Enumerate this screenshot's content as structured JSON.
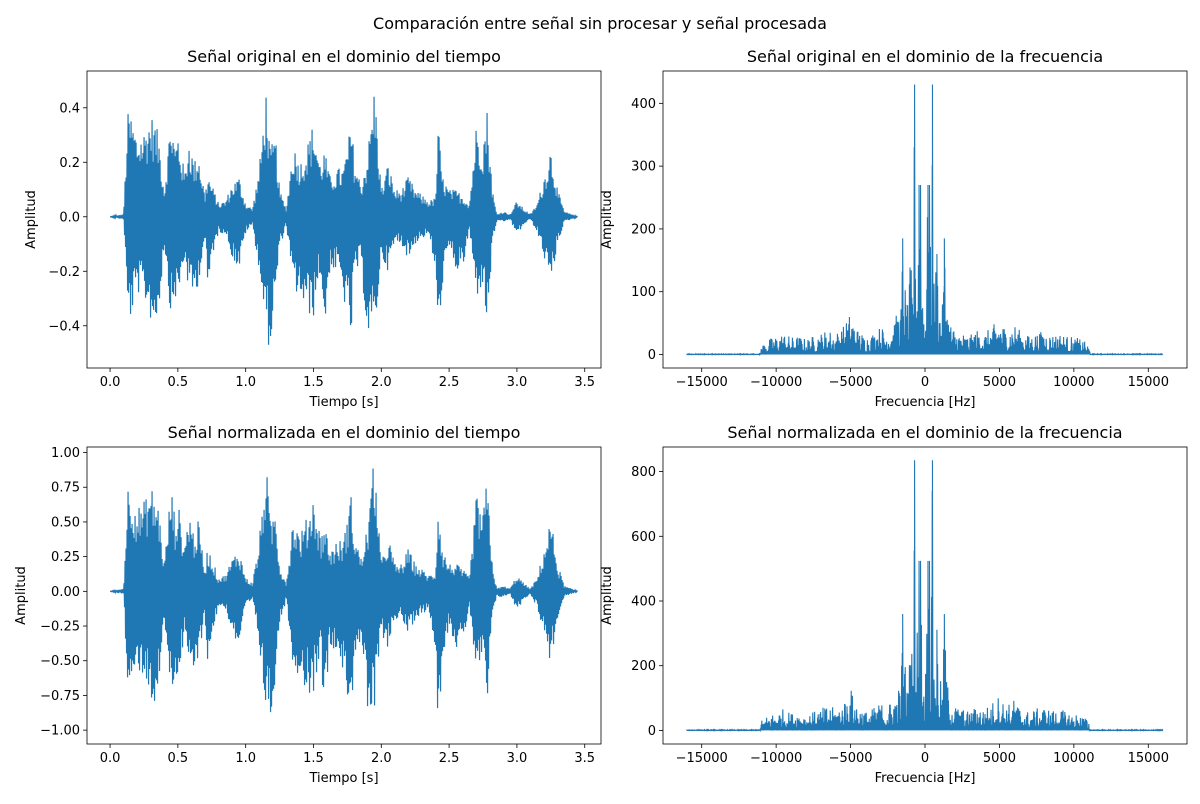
{
  "figure_title": "Comparación entre señal sin procesar y señal procesada",
  "colors": {
    "series": "#1f77b4",
    "axis": "#000000",
    "background": "#ffffff"
  },
  "chart_data": [
    {
      "type": "line",
      "title": "Señal original en el dominio del tiempo",
      "xlabel": "Tiempo [s]",
      "ylabel": "Amplitud",
      "xlim": [
        -0.17,
        3.62
      ],
      "ylim": [
        -0.555,
        0.535
      ],
      "xticks": [
        0.0,
        0.5,
        1.0,
        1.5,
        2.0,
        2.5,
        3.0,
        3.5
      ],
      "xtick_labels": [
        "0.0",
        "0.5",
        "1.0",
        "1.5",
        "2.0",
        "2.5",
        "3.0",
        "3.5"
      ],
      "yticks": [
        -0.4,
        -0.2,
        0.0,
        0.2,
        0.4
      ],
      "ytick_labels": [
        "−0.4",
        "−0.2",
        "0.0",
        "0.2",
        "0.4"
      ],
      "grid": false,
      "series": [
        {
          "envelope": {
            "x": [
              0.0,
              0.1,
              0.13,
              0.15,
              0.2,
              0.25,
              0.3,
              0.33,
              0.36,
              0.4,
              0.45,
              0.48,
              0.5,
              0.55,
              0.58,
              0.62,
              0.65,
              0.7,
              0.72,
              0.75,
              0.8,
              0.85,
              0.9,
              0.95,
              1.0,
              1.05,
              1.1,
              1.15,
              1.18,
              1.22,
              1.25,
              1.3,
              1.35,
              1.4,
              1.45,
              1.5,
              1.55,
              1.58,
              1.62,
              1.68,
              1.72,
              1.78,
              1.8,
              1.85,
              1.9,
              1.95,
              2.0,
              2.05,
              2.1,
              2.15,
              2.2,
              2.25,
              2.3,
              2.35,
              2.4,
              2.42,
              2.45,
              2.5,
              2.55,
              2.6,
              2.65,
              2.7,
              2.75,
              2.78,
              2.82,
              2.85,
              2.9,
              2.95,
              3.0,
              3.05,
              3.1,
              3.15,
              3.2,
              3.25,
              3.3,
              3.35,
              3.4,
              3.45
            ],
            "upper": [
              0.0,
              0.01,
              0.38,
              0.39,
              0.3,
              0.32,
              0.38,
              0.35,
              0.3,
              0.1,
              0.38,
              0.26,
              0.32,
              0.16,
              0.3,
              0.2,
              0.25,
              0.08,
              0.16,
              0.12,
              0.05,
              0.06,
              0.12,
              0.15,
              0.05,
              0.03,
              0.18,
              0.47,
              0.25,
              0.3,
              0.1,
              0.03,
              0.27,
              0.2,
              0.26,
              0.35,
              0.2,
              0.25,
              0.15,
              0.18,
              0.18,
              0.35,
              0.22,
              0.12,
              0.24,
              0.49,
              0.1,
              0.2,
              0.1,
              0.1,
              0.15,
              0.1,
              0.08,
              0.06,
              0.07,
              0.34,
              0.15,
              0.1,
              0.1,
              0.08,
              0.05,
              0.34,
              0.28,
              0.4,
              0.1,
              0.01,
              0.02,
              0.01,
              0.06,
              0.03,
              0.01,
              0.05,
              0.15,
              0.26,
              0.1,
              0.02,
              0.01,
              0.0
            ],
            "lower": [
              0.0,
              -0.01,
              -0.36,
              -0.38,
              -0.28,
              -0.3,
              -0.38,
              -0.42,
              -0.35,
              -0.1,
              -0.38,
              -0.3,
              -0.32,
              -0.16,
              -0.28,
              -0.3,
              -0.25,
              -0.08,
              -0.3,
              -0.15,
              -0.06,
              -0.06,
              -0.15,
              -0.2,
              -0.06,
              -0.03,
              -0.2,
              -0.43,
              -0.5,
              -0.3,
              -0.12,
              -0.03,
              -0.27,
              -0.3,
              -0.36,
              -0.37,
              -0.2,
              -0.44,
              -0.2,
              -0.2,
              -0.3,
              -0.45,
              -0.22,
              -0.18,
              -0.45,
              -0.45,
              -0.15,
              -0.2,
              -0.1,
              -0.1,
              -0.16,
              -0.1,
              -0.08,
              -0.07,
              -0.2,
              -0.52,
              -0.25,
              -0.12,
              -0.2,
              -0.2,
              -0.05,
              -0.3,
              -0.25,
              -0.43,
              -0.1,
              -0.02,
              -0.02,
              -0.01,
              -0.07,
              -0.03,
              -0.01,
              -0.06,
              -0.15,
              -0.26,
              -0.1,
              -0.02,
              -0.01,
              0.0
            ]
          }
        }
      ]
    },
    {
      "type": "line",
      "title": "Señal original en el dominio de la frecuencia",
      "xlabel": "Frecuencia [Hz]",
      "ylabel": "Amplitud",
      "xlim": [
        -17600,
        17600
      ],
      "ylim": [
        -21.5,
        451.5
      ],
      "xticks": [
        -15000,
        -10000,
        -5000,
        0,
        5000,
        10000,
        15000
      ],
      "xtick_labels": [
        "−15000",
        "−10000",
        "−5000",
        "0",
        "5000",
        "10000",
        "15000"
      ],
      "yticks": [
        0,
        100,
        200,
        300,
        400
      ],
      "ytick_labels": [
        "0",
        "100",
        "200",
        "300",
        "400"
      ],
      "grid": false,
      "series": [
        {
          "envelope": {
            "x": [
              -16000,
              -11100,
              -11000,
              -10500,
              -10000,
              -9500,
              -9000,
              -8500,
              -8000,
              -7500,
              -7000,
              -6500,
              -6000,
              -5500,
              -5000,
              -4500,
              -4000,
              -3500,
              -3000,
              -2500,
              -2000,
              -1600,
              -1500,
              -1300,
              -1100,
              -1000,
              -800,
              -700,
              -600,
              -400,
              -300,
              -200,
              0,
              200,
              300,
              400,
              500,
              600,
              700,
              800,
              1000,
              1200,
              1300,
              1500,
              1600,
              2000,
              2500,
              3000,
              3500,
              4000,
              4500,
              5000,
              5500,
              6000,
              6500,
              7000,
              7500,
              8000,
              8500,
              9000,
              9500,
              10000,
              10500,
              11000,
              11100,
              16000
            ],
            "upper": [
              1,
              1,
              15,
              25,
              30,
              35,
              28,
              30,
              25,
              30,
              35,
              40,
              35,
              45,
              68,
              40,
              30,
              35,
              45,
              40,
              60,
              80,
              185,
              100,
              70,
              150,
              120,
              430,
              120,
              270,
              270,
              150,
              60,
              270,
              270,
              120,
              430,
              120,
              150,
              160,
              80,
              80,
              185,
              80,
              60,
              40,
              35,
              30,
              40,
              35,
              45,
              58,
              40,
              50,
              35,
              30,
              35,
              38,
              32,
              35,
              30,
              28,
              25,
              15,
              1,
              1
            ]
          }
        }
      ]
    },
    {
      "type": "line",
      "title": "Señal normalizada en el dominio del tiempo",
      "xlabel": "Tiempo [s]",
      "ylabel": "Amplitud",
      "xlim": [
        -0.17,
        3.62
      ],
      "ylim": [
        -1.1,
        1.04
      ],
      "xticks": [
        0.0,
        0.5,
        1.0,
        1.5,
        2.0,
        2.5,
        3.0,
        3.5
      ],
      "xtick_labels": [
        "0.0",
        "0.5",
        "1.0",
        "1.5",
        "2.0",
        "2.5",
        "3.0",
        "3.5"
      ],
      "yticks": [
        -1.0,
        -0.75,
        -0.5,
        -0.25,
        0.0,
        0.25,
        0.5,
        0.75,
        1.0
      ],
      "ytick_labels": [
        "−1.00",
        "−0.75",
        "−0.50",
        "−0.25",
        "0.00",
        "0.25",
        "0.50",
        "0.75",
        "1.00"
      ],
      "grid": false,
      "series": [
        {
          "envelope": {
            "x": [
              0.0,
              0.1,
              0.13,
              0.15,
              0.2,
              0.25,
              0.3,
              0.33,
              0.36,
              0.4,
              0.45,
              0.48,
              0.5,
              0.55,
              0.58,
              0.62,
              0.65,
              0.7,
              0.72,
              0.75,
              0.8,
              0.85,
              0.9,
              0.95,
              1.0,
              1.05,
              1.1,
              1.15,
              1.18,
              1.22,
              1.25,
              1.3,
              1.35,
              1.4,
              1.45,
              1.5,
              1.55,
              1.58,
              1.62,
              1.68,
              1.72,
              1.78,
              1.8,
              1.85,
              1.9,
              1.95,
              2.0,
              2.05,
              2.1,
              2.15,
              2.2,
              2.25,
              2.3,
              2.35,
              2.4,
              2.42,
              2.45,
              2.5,
              2.55,
              2.6,
              2.65,
              2.7,
              2.75,
              2.78,
              2.82,
              2.85,
              2.9,
              2.95,
              3.0,
              3.05,
              3.1,
              3.15,
              3.2,
              3.25,
              3.3,
              3.35,
              3.4,
              3.45
            ],
            "upper": [
              0.0,
              0.02,
              0.77,
              0.79,
              0.61,
              0.65,
              0.77,
              0.71,
              0.61,
              0.2,
              0.77,
              0.53,
              0.65,
              0.33,
              0.61,
              0.41,
              0.51,
              0.16,
              0.33,
              0.24,
              0.1,
              0.12,
              0.24,
              0.31,
              0.1,
              0.06,
              0.37,
              0.95,
              0.51,
              0.61,
              0.2,
              0.06,
              0.55,
              0.41,
              0.53,
              0.71,
              0.41,
              0.51,
              0.31,
              0.37,
              0.37,
              0.71,
              0.45,
              0.24,
              0.49,
              1.0,
              0.2,
              0.41,
              0.2,
              0.2,
              0.31,
              0.2,
              0.16,
              0.12,
              0.14,
              0.69,
              0.31,
              0.2,
              0.2,
              0.16,
              0.1,
              0.69,
              0.57,
              0.81,
              0.2,
              0.02,
              0.04,
              0.02,
              0.12,
              0.06,
              0.02,
              0.1,
              0.31,
              0.53,
              0.2,
              0.04,
              0.02,
              0.0
            ],
            "lower": [
              0.0,
              -0.02,
              -0.73,
              -0.77,
              -0.57,
              -0.61,
              -0.77,
              -0.85,
              -0.71,
              -0.2,
              -0.77,
              -0.61,
              -0.65,
              -0.33,
              -0.57,
              -0.61,
              -0.51,
              -0.16,
              -0.61,
              -0.31,
              -0.12,
              -0.12,
              -0.31,
              -0.41,
              -0.12,
              -0.06,
              -0.41,
              -0.87,
              -1.0,
              -0.61,
              -0.24,
              -0.06,
              -0.55,
              -0.61,
              -0.73,
              -0.75,
              -0.41,
              -0.89,
              -0.41,
              -0.41,
              -0.61,
              -0.91,
              -0.45,
              -0.37,
              -0.91,
              -0.91,
              -0.31,
              -0.41,
              -0.2,
              -0.2,
              -0.33,
              -0.2,
              -0.16,
              -0.14,
              -0.41,
              -1.0,
              -0.51,
              -0.24,
              -0.41,
              -0.41,
              -0.1,
              -0.61,
              -0.51,
              -0.87,
              -0.2,
              -0.04,
              -0.04,
              -0.02,
              -0.14,
              -0.06,
              -0.02,
              -0.12,
              -0.31,
              -0.53,
              -0.2,
              -0.04,
              -0.02,
              0.0
            ]
          }
        }
      ]
    },
    {
      "type": "line",
      "title": "Señal normalizada en el dominio de la frecuencia",
      "xlabel": "Frecuencia [Hz]",
      "ylabel": "Amplitud",
      "xlim": [
        -17600,
        17600
      ],
      "ylim": [
        -42,
        876
      ],
      "xticks": [
        -15000,
        -10000,
        -5000,
        0,
        5000,
        10000,
        15000
      ],
      "xtick_labels": [
        "−15000",
        "−10000",
        "−5000",
        "0",
        "5000",
        "10000",
        "15000"
      ],
      "yticks": [
        0,
        200,
        400,
        600,
        800
      ],
      "ytick_labels": [
        "0",
        "200",
        "400",
        "600",
        "800"
      ],
      "grid": false,
      "series": [
        {
          "envelope": {
            "x": [
              -16000,
              -11100,
              -11000,
              -10500,
              -10000,
              -9500,
              -9000,
              -8500,
              -8000,
              -7500,
              -7000,
              -6500,
              -6000,
              -5500,
              -5000,
              -4500,
              -4000,
              -3500,
              -3000,
              -2500,
              -2000,
              -1600,
              -1500,
              -1300,
              -1100,
              -1000,
              -800,
              -700,
              -600,
              -400,
              -300,
              -200,
              0,
              200,
              300,
              400,
              500,
              600,
              700,
              800,
              1000,
              1200,
              1300,
              1500,
              1600,
              2000,
              2500,
              3000,
              3500,
              4000,
              4500,
              5000,
              5500,
              6000,
              6500,
              7000,
              7500,
              8000,
              8500,
              9000,
              9500,
              10000,
              10500,
              11000,
              11100,
              16000
            ],
            "upper": [
              2,
              2,
              30,
              48,
              58,
              68,
              54,
              58,
              48,
              58,
              68,
              78,
              68,
              87,
              132,
              78,
              58,
              68,
              87,
              78,
              116,
              155,
              360,
              194,
              136,
              291,
              233,
              835,
              233,
              524,
              524,
              291,
              116,
              524,
              524,
              233,
              835,
              233,
              291,
              311,
              155,
              155,
              360,
              155,
              116,
              78,
              68,
              58,
              78,
              68,
              87,
              113,
              78,
              97,
              68,
              58,
              68,
              74,
              62,
              68,
              58,
              54,
              48,
              30,
              2,
              2
            ]
          }
        }
      ]
    }
  ]
}
